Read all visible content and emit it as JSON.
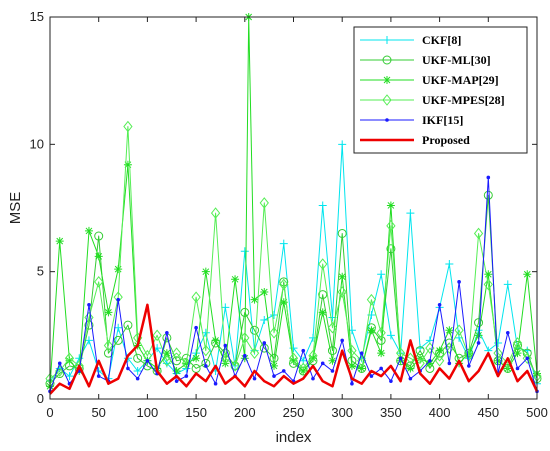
{
  "chart_data": {
    "type": "line",
    "xlabel": "index",
    "ylabel": "MSE",
    "xlim": [
      0,
      500
    ],
    "ylim": [
      0,
      15
    ],
    "xticks": [
      "0",
      "50",
      "100",
      "150",
      "200",
      "250",
      "300",
      "350",
      "400",
      "450",
      "500"
    ],
    "yticks": [
      "0",
      "5",
      "10",
      "15"
    ],
    "grid": false,
    "legend_position": "top-right",
    "series": [
      {
        "name": "CKF[8]",
        "color": "#00e5ee",
        "marker": "plus",
        "x": [
          0,
          10,
          20,
          30,
          40,
          50,
          60,
          70,
          80,
          90,
          100,
          110,
          120,
          130,
          140,
          150,
          160,
          170,
          180,
          190,
          200,
          210,
          220,
          230,
          240,
          250,
          260,
          270,
          280,
          290,
          300,
          310,
          320,
          330,
          340,
          350,
          360,
          370,
          380,
          390,
          400,
          410,
          420,
          430,
          440,
          450,
          460,
          470,
          480,
          490,
          500
        ],
        "y": [
          0.7,
          1.2,
          0.9,
          1.6,
          2.3,
          1.1,
          0.8,
          2.8,
          1.6,
          1.1,
          1.5,
          2.0,
          1.4,
          1.0,
          1.2,
          1.8,
          2.6,
          1.1,
          3.6,
          1.3,
          5.8,
          1.9,
          3.1,
          3.3,
          6.1,
          2.0,
          1.5,
          2.4,
          7.6,
          3.2,
          10.0,
          2.7,
          1.6,
          3.3,
          4.9,
          2.5,
          1.8,
          7.3,
          2.0,
          2.3,
          3.6,
          5.3,
          2.4,
          1.6,
          2.7,
          1.9,
          2.2,
          4.5,
          2.0,
          1.9,
          0.6
        ]
      },
      {
        "name": "UKF-ML[30]",
        "color": "#33cc33",
        "marker": "circle",
        "x": [
          0,
          10,
          20,
          30,
          40,
          50,
          60,
          70,
          80,
          90,
          100,
          110,
          120,
          130,
          140,
          150,
          160,
          170,
          180,
          190,
          200,
          210,
          220,
          230,
          240,
          250,
          260,
          270,
          280,
          290,
          300,
          310,
          320,
          330,
          340,
          350,
          360,
          370,
          380,
          390,
          400,
          410,
          420,
          430,
          440,
          450,
          460,
          470,
          480,
          490,
          500
        ],
        "y": [
          0.6,
          1.0,
          1.3,
          1.2,
          2.9,
          6.4,
          1.8,
          2.3,
          2.9,
          1.6,
          1.3,
          1.1,
          2.4,
          1.5,
          1.6,
          1.2,
          1.4,
          2.2,
          1.8,
          1.3,
          3.4,
          2.7,
          2.0,
          1.6,
          4.6,
          1.4,
          1.1,
          1.5,
          4.1,
          1.9,
          6.5,
          1.5,
          1.2,
          2.8,
          2.3,
          5.9,
          1.5,
          1.3,
          1.9,
          1.2,
          1.8,
          2.2,
          1.6,
          1.8,
          3.0,
          8.0,
          1.5,
          1.2,
          2.1,
          1.8,
          0.8
        ]
      },
      {
        "name": "UKF-MAP[29]",
        "color": "#22dd22",
        "marker": "asterisk",
        "x": [
          0,
          10,
          20,
          30,
          40,
          50,
          60,
          70,
          80,
          90,
          100,
          110,
          120,
          130,
          140,
          150,
          160,
          170,
          180,
          190,
          200,
          204,
          210,
          220,
          230,
          240,
          250,
          260,
          270,
          280,
          290,
          300,
          310,
          320,
          330,
          340,
          350,
          360,
          370,
          380,
          390,
          400,
          410,
          420,
          430,
          440,
          450,
          460,
          470,
          480,
          490,
          500
        ],
        "y": [
          0.5,
          6.2,
          1.5,
          1.1,
          6.6,
          5.6,
          3.4,
          5.1,
          9.2,
          2.1,
          1.5,
          1.2,
          1.8,
          1.1,
          1.4,
          1.6,
          5.0,
          2.3,
          1.4,
          4.7,
          1.6,
          15.0,
          3.9,
          4.2,
          1.3,
          3.8,
          1.5,
          1.1,
          1.6,
          3.4,
          1.5,
          4.8,
          1.3,
          1.2,
          2.7,
          1.8,
          7.6,
          1.5,
          1.2,
          1.6,
          1.4,
          1.9,
          2.7,
          1.4,
          1.8,
          2.5,
          4.9,
          1.5,
          1.2,
          1.8,
          4.9,
          1.0
        ]
      },
      {
        "name": "UKF-MPES[28]",
        "color": "#55ee55",
        "marker": "diamond",
        "x": [
          0,
          10,
          20,
          30,
          40,
          50,
          60,
          70,
          80,
          90,
          100,
          110,
          120,
          130,
          140,
          150,
          160,
          170,
          180,
          190,
          200,
          210,
          220,
          230,
          240,
          250,
          260,
          270,
          280,
          290,
          300,
          310,
          320,
          330,
          340,
          350,
          360,
          370,
          380,
          390,
          400,
          410,
          420,
          430,
          440,
          450,
          460,
          470,
          480,
          490,
          500
        ],
        "y": [
          0.8,
          1.1,
          1.6,
          1.3,
          3.2,
          4.6,
          2.1,
          4.0,
          10.7,
          2.4,
          1.7,
          2.5,
          1.5,
          1.8,
          1.4,
          4.0,
          1.9,
          7.3,
          1.6,
          1.3,
          2.4,
          1.8,
          7.7,
          2.6,
          4.5,
          1.6,
          1.2,
          1.7,
          5.3,
          2.8,
          4.2,
          1.9,
          1.5,
          3.9,
          2.6,
          6.8,
          1.8,
          1.6,
          1.4,
          2.0,
          1.5,
          2.0,
          2.7,
          1.7,
          6.5,
          4.5,
          1.8,
          1.4,
          2.2,
          1.6,
          0.9
        ]
      },
      {
        "name": "IKF[15]",
        "color": "#1a1aff",
        "marker": "dot",
        "x": [
          0,
          10,
          20,
          30,
          40,
          50,
          60,
          70,
          80,
          90,
          100,
          110,
          120,
          130,
          140,
          150,
          160,
          170,
          180,
          190,
          200,
          210,
          220,
          230,
          240,
          250,
          260,
          270,
          280,
          290,
          300,
          310,
          320,
          330,
          340,
          350,
          360,
          370,
          380,
          390,
          400,
          410,
          420,
          430,
          440,
          450,
          460,
          470,
          480,
          490,
          500
        ],
        "y": [
          0.3,
          1.4,
          0.6,
          1.1,
          3.7,
          0.9,
          0.7,
          3.9,
          1.2,
          0.8,
          1.5,
          1.0,
          2.6,
          0.7,
          0.9,
          2.8,
          1.3,
          0.6,
          2.1,
          0.9,
          1.7,
          0.8,
          2.2,
          0.9,
          1.1,
          0.7,
          1.9,
          0.8,
          1.4,
          1.1,
          2.3,
          0.6,
          1.8,
          0.9,
          1.2,
          0.7,
          1.6,
          0.8,
          1.1,
          1.5,
          3.7,
          1.4,
          4.6,
          1.3,
          2.2,
          8.7,
          1.0,
          2.6,
          1.2,
          1.6,
          0.3
        ]
      },
      {
        "name": "Proposed",
        "color": "#ee0000",
        "marker": "none",
        "x": [
          0,
          10,
          20,
          30,
          40,
          50,
          60,
          70,
          80,
          90,
          100,
          110,
          120,
          130,
          140,
          150,
          160,
          170,
          180,
          190,
          200,
          210,
          220,
          230,
          240,
          250,
          260,
          270,
          280,
          290,
          300,
          310,
          320,
          330,
          340,
          350,
          360,
          370,
          380,
          390,
          400,
          410,
          420,
          430,
          440,
          450,
          460,
          470,
          480,
          490,
          500
        ],
        "y": [
          0.2,
          0.6,
          0.4,
          1.3,
          0.5,
          1.5,
          0.6,
          0.8,
          1.7,
          2.1,
          3.7,
          1.1,
          0.6,
          0.9,
          0.5,
          1.0,
          0.7,
          1.3,
          0.6,
          0.9,
          0.5,
          1.1,
          0.7,
          0.5,
          0.9,
          0.6,
          0.8,
          1.3,
          0.7,
          0.5,
          1.9,
          0.8,
          0.6,
          1.1,
          0.9,
          1.3,
          0.7,
          2.3,
          1.0,
          0.6,
          1.2,
          0.8,
          1.5,
          0.7,
          1.1,
          1.8,
          0.9,
          1.6,
          0.7,
          1.1,
          0.3
        ]
      }
    ]
  }
}
